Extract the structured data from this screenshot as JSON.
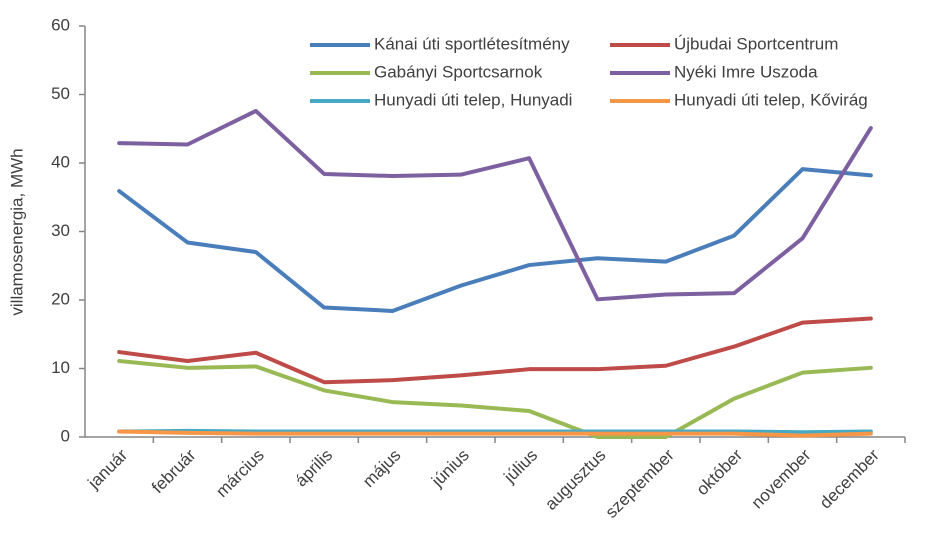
{
  "chart_data": {
    "type": "line",
    "y_label": "villamosenergia, MWh",
    "categories": [
      "január",
      "február",
      "március",
      "április",
      "május",
      "június",
      "július",
      "augusztus",
      "szeptember",
      "október",
      "november",
      "december"
    ],
    "series": [
      {
        "name": "Kánai úti sportlétesítmény",
        "color": "#4a7ebb",
        "values": [
          35.9,
          28.4,
          27.0,
          18.9,
          18.4,
          22.1,
          25.1,
          26.1,
          25.6,
          29.4,
          39.1,
          38.2
        ]
      },
      {
        "name": "Újbudai Sportcentrum",
        "color": "#be4b48",
        "values": [
          12.4,
          11.1,
          12.3,
          8.0,
          8.3,
          9.0,
          9.9,
          9.9,
          10.4,
          13.2,
          16.7,
          17.3
        ]
      },
      {
        "name": "Gabányi Sportcsarnok",
        "color": "#98b954",
        "values": [
          11.1,
          10.1,
          10.3,
          6.8,
          5.1,
          4.6,
          3.8,
          0,
          0,
          5.6,
          9.4,
          10.1
        ]
      },
      {
        "name": "Nyéki Imre Uszoda",
        "color": "#7d60a0",
        "values": [
          42.9,
          42.7,
          47.6,
          38.4,
          38.1,
          38.3,
          40.7,
          20.1,
          20.8,
          21.0,
          29.0,
          45.1
        ]
      },
      {
        "name": "Hunyadi úti telep, Hunyadi",
        "color": "#46aac5",
        "values": [
          0.8,
          0.9,
          0.8,
          0.8,
          0.8,
          0.8,
          0.8,
          0.8,
          0.8,
          0.8,
          0.7,
          0.8
        ]
      },
      {
        "name": "Hunyadi úti telep, Kővirág",
        "color": "#f79646",
        "values": [
          0.8,
          0.6,
          0.5,
          0.5,
          0.5,
          0.5,
          0.5,
          0.5,
          0.5,
          0.5,
          0.2,
          0.5
        ]
      }
    ],
    "ylim": [
      0,
      60
    ],
    "yticks": [
      0,
      10,
      20,
      30,
      40,
      50,
      60
    ],
    "grid": false,
    "legend": "top-right"
  }
}
